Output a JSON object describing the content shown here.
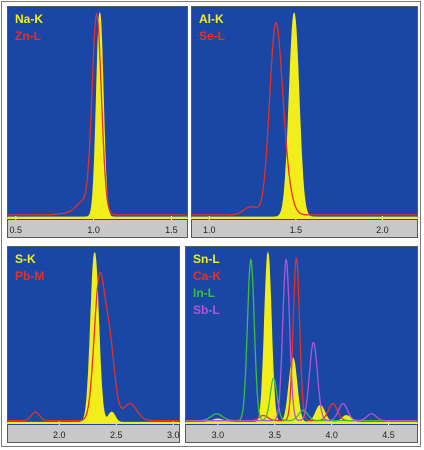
{
  "colors": {
    "plot_background": "#1a47a6",
    "axis_background": "#c8c8c8",
    "panel_border": "#5a5a5a",
    "yellow": "#f2ee1c",
    "red": "#e83024",
    "green": "#3bbf3b",
    "purple": "#b255d8"
  },
  "chart_data": [
    {
      "type": "line",
      "xlim": [
        0.45,
        1.6
      ],
      "ylim": [
        0,
        1.02
      ],
      "ticks": [
        {
          "value": 0.5,
          "label": "0.5"
        },
        {
          "value": 1.0,
          "label": "1.0"
        },
        {
          "value": 1.5,
          "label": "1.5"
        }
      ],
      "series": [
        {
          "name": "Na-K",
          "color": "yellow",
          "fill": true,
          "peaks": [
            [
              1.04,
              1.0,
              0.022
            ]
          ],
          "baseline": 0.01
        },
        {
          "name": "Zn-L",
          "color": "red",
          "fill": false,
          "peaks": [
            [
              1.02,
              0.98,
              0.03
            ],
            [
              0.93,
              0.06,
              0.04
            ],
            [
              0.85,
              0.01,
              0.06
            ]
          ],
          "baseline": 0.02
        }
      ]
    },
    {
      "type": "line",
      "xlim": [
        0.9,
        2.2
      ],
      "ylim": [
        0,
        1.02
      ],
      "ticks": [
        {
          "value": 1.0,
          "label": "1.0"
        },
        {
          "value": 1.5,
          "label": "1.5"
        },
        {
          "value": 2.0,
          "label": "2.0"
        }
      ],
      "series": [
        {
          "name": "Al-K",
          "color": "yellow",
          "fill": true,
          "peaks": [
            [
              1.49,
              1.0,
              0.028
            ]
          ],
          "baseline": 0.01
        },
        {
          "name": "Se-L",
          "color": "red",
          "fill": false,
          "peaks": [
            [
              1.38,
              0.78,
              0.035
            ],
            [
              1.42,
              0.25,
              0.04
            ],
            [
              1.24,
              0.04,
              0.04
            ]
          ],
          "baseline": 0.02
        }
      ]
    },
    {
      "type": "line",
      "xlim": [
        1.55,
        3.05
      ],
      "ylim": [
        0,
        1.02
      ],
      "ticks": [
        {
          "value": 2.0,
          "label": "2.0"
        },
        {
          "value": 2.5,
          "label": "2.5"
        },
        {
          "value": 3.0,
          "label": "3.0"
        }
      ],
      "series": [
        {
          "name": "S-K",
          "color": "yellow",
          "fill": true,
          "peaks": [
            [
              2.31,
              1.0,
              0.035
            ],
            [
              2.46,
              0.06,
              0.03
            ]
          ],
          "baseline": 0.01
        },
        {
          "name": "Pb-M",
          "color": "red",
          "fill": false,
          "peaks": [
            [
              2.35,
              0.8,
              0.045
            ],
            [
              2.44,
              0.45,
              0.045
            ],
            [
              2.62,
              0.1,
              0.06
            ],
            [
              1.79,
              0.05,
              0.035
            ]
          ],
          "baseline": 0.02
        }
      ]
    },
    {
      "type": "line",
      "xlim": [
        2.72,
        4.75
      ],
      "ylim": [
        0,
        1.02
      ],
      "ticks": [
        {
          "value": 3.0,
          "label": "3.0"
        },
        {
          "value": 3.5,
          "label": "3.5"
        },
        {
          "value": 4.0,
          "label": "4.0"
        },
        {
          "value": 4.5,
          "label": "4.5"
        }
      ],
      "series": [
        {
          "name": "Sn-L",
          "color": "yellow",
          "fill": true,
          "peaks": [
            [
              3.44,
              1.0,
              0.03
            ],
            [
              3.66,
              0.38,
              0.035
            ],
            [
              3.9,
              0.1,
              0.04
            ],
            [
              4.13,
              0.04,
              0.04
            ],
            [
              3.0,
              0.02,
              0.05
            ]
          ],
          "baseline": 0.01
        },
        {
          "name": "Ca-K",
          "color": "red",
          "fill": false,
          "peaks": [
            [
              3.69,
              0.96,
              0.028
            ],
            [
              4.01,
              0.1,
              0.04
            ],
            [
              3.4,
              0.03,
              0.04
            ]
          ],
          "baseline": 0.02
        },
        {
          "name": "In-L",
          "color": "green",
          "fill": false,
          "peaks": [
            [
              3.29,
              0.95,
              0.03
            ],
            [
              3.49,
              0.25,
              0.03
            ],
            [
              3.75,
              0.06,
              0.04
            ],
            [
              2.99,
              0.04,
              0.05
            ]
          ],
          "baseline": 0.02
        },
        {
          "name": "Sb-L",
          "color": "purple",
          "fill": false,
          "peaks": [
            [
              3.6,
              0.95,
              0.03
            ],
            [
              3.84,
              0.46,
              0.035
            ],
            [
              4.1,
              0.1,
              0.04
            ],
            [
              4.35,
              0.04,
              0.04
            ]
          ],
          "baseline": 0.02
        }
      ]
    }
  ]
}
